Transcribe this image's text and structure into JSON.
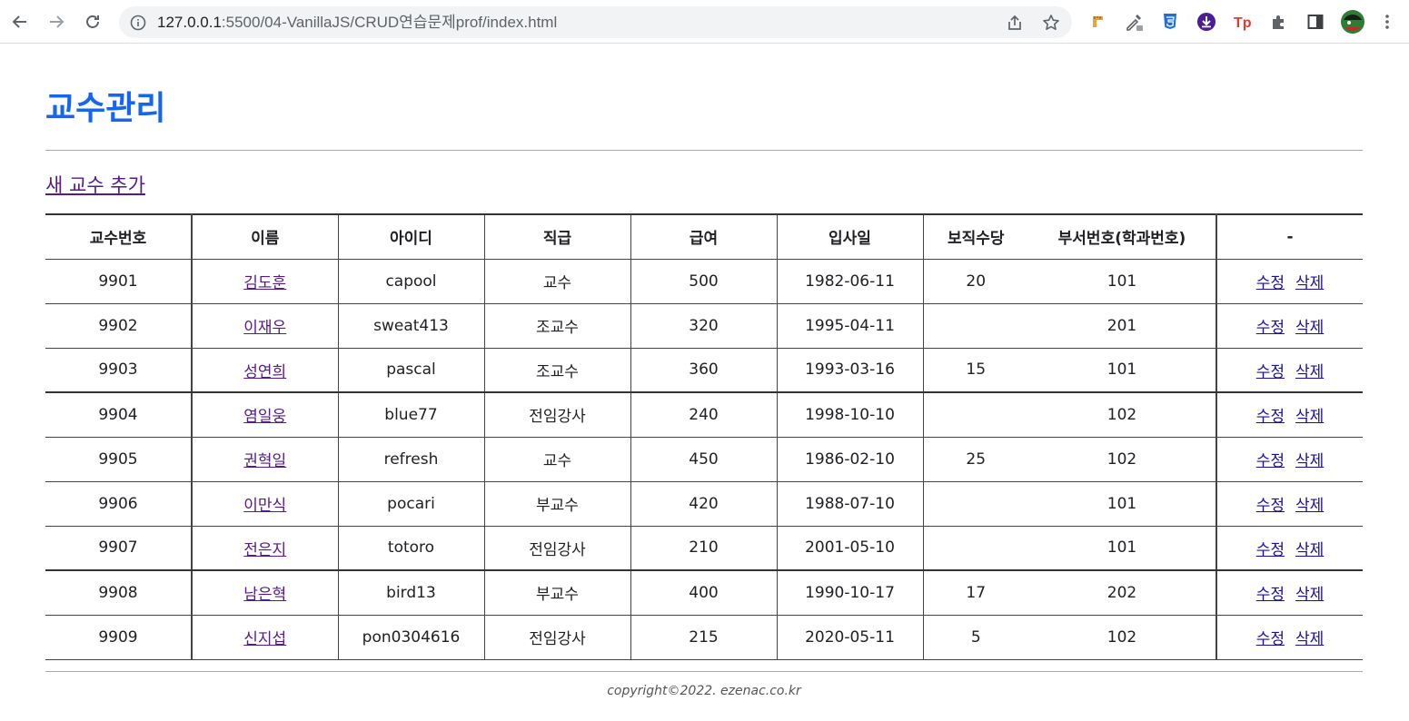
{
  "browser": {
    "url_host": "127.0.0.1",
    "url_path": ":5500/04-VanillaJS/CRUD연습문제prof/index.html"
  },
  "page": {
    "title": "교수관리",
    "add_link": "새 교수 추가",
    "footer": "copyright©2022. ezenac.co.kr"
  },
  "table": {
    "headers": [
      "교수번호",
      "이름",
      "아이디",
      "직급",
      "급여",
      "입사일",
      "보직수당",
      "부서번호(학과번호)",
      "-"
    ],
    "edit_label": "수정",
    "delete_label": "삭제",
    "rows": [
      {
        "no": "9901",
        "name": "김도훈",
        "id": "capool",
        "rank": "교수",
        "pay": "500",
        "hire": "1982-06-11",
        "bonus": "20",
        "dept": "101"
      },
      {
        "no": "9902",
        "name": "이재우",
        "id": "sweat413",
        "rank": "조교수",
        "pay": "320",
        "hire": "1995-04-11",
        "bonus": "",
        "dept": "201"
      },
      {
        "no": "9903",
        "name": "성연희",
        "id": "pascal",
        "rank": "조교수",
        "pay": "360",
        "hire": "1993-03-16",
        "bonus": "15",
        "dept": "101"
      },
      {
        "no": "9904",
        "name": "염일웅",
        "id": "blue77",
        "rank": "전임강사",
        "pay": "240",
        "hire": "1998-10-10",
        "bonus": "",
        "dept": "102"
      },
      {
        "no": "9905",
        "name": "권혁일",
        "id": "refresh",
        "rank": "교수",
        "pay": "450",
        "hire": "1986-02-10",
        "bonus": "25",
        "dept": "102"
      },
      {
        "no": "9906",
        "name": "이만식",
        "id": "pocari",
        "rank": "부교수",
        "pay": "420",
        "hire": "1988-07-10",
        "bonus": "",
        "dept": "101"
      },
      {
        "no": "9907",
        "name": "전은지",
        "id": "totoro",
        "rank": "전임강사",
        "pay": "210",
        "hire": "2001-05-10",
        "bonus": "",
        "dept": "101"
      },
      {
        "no": "9908",
        "name": "남은혁",
        "id": "bird13",
        "rank": "부교수",
        "pay": "400",
        "hire": "1990-10-17",
        "bonus": "17",
        "dept": "202"
      },
      {
        "no": "9909",
        "name": "신지섭",
        "id": "pon0304616",
        "rank": "전임강사",
        "pay": "215",
        "hire": "2020-05-11",
        "bonus": "5",
        "dept": "102"
      }
    ]
  }
}
